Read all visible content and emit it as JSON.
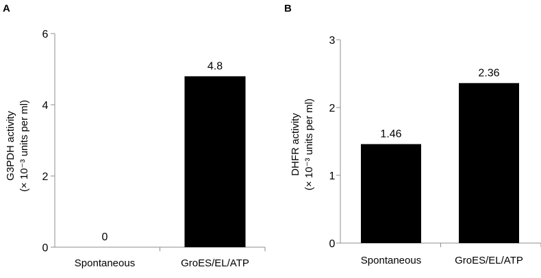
{
  "chart_data": [
    {
      "type": "bar",
      "panel": "A",
      "categories": [
        "Spontaneous",
        "GroES/EL/ATP"
      ],
      "values": [
        0,
        4.8
      ],
      "value_labels": [
        "0",
        "4.8"
      ],
      "ylabel_line1": "G3PDH activity",
      "ylabel_line2": "(× 10⁻³ units per ml)",
      "ylim": [
        0,
        6
      ],
      "yticks": [
        "0",
        "2",
        "4",
        "6"
      ],
      "bar_color": "#000000",
      "grid": false
    },
    {
      "type": "bar",
      "panel": "B",
      "categories": [
        "Spontaneous",
        "GroES/EL/ATP"
      ],
      "values": [
        1.46,
        2.36
      ],
      "value_labels": [
        "1.46",
        "2.36"
      ],
      "ylabel_line1": "DHFR activity",
      "ylabel_line2": "(× 10⁻³ units per ml)",
      "ylim": [
        0,
        3
      ],
      "yticks": [
        "0",
        "1",
        "2",
        "3"
      ],
      "bar_color": "#000000",
      "grid": false
    }
  ]
}
